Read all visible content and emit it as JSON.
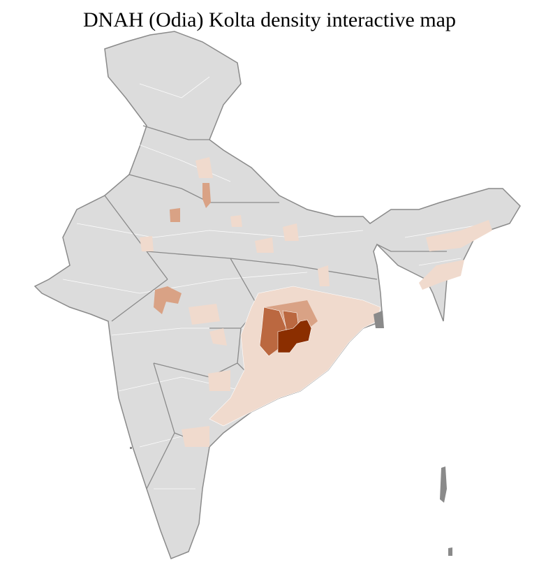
{
  "title": "DNAH (Odia) Kolta density interactive map",
  "colors": {
    "no_data": "#dcdcdc",
    "district_border": "#ffffff",
    "state_border": "#8a8a8a",
    "density_low": "#f0dacd",
    "density_medium": "#d9a285",
    "density_high": "#bb6840",
    "density_highest": "#8b2e00"
  }
}
